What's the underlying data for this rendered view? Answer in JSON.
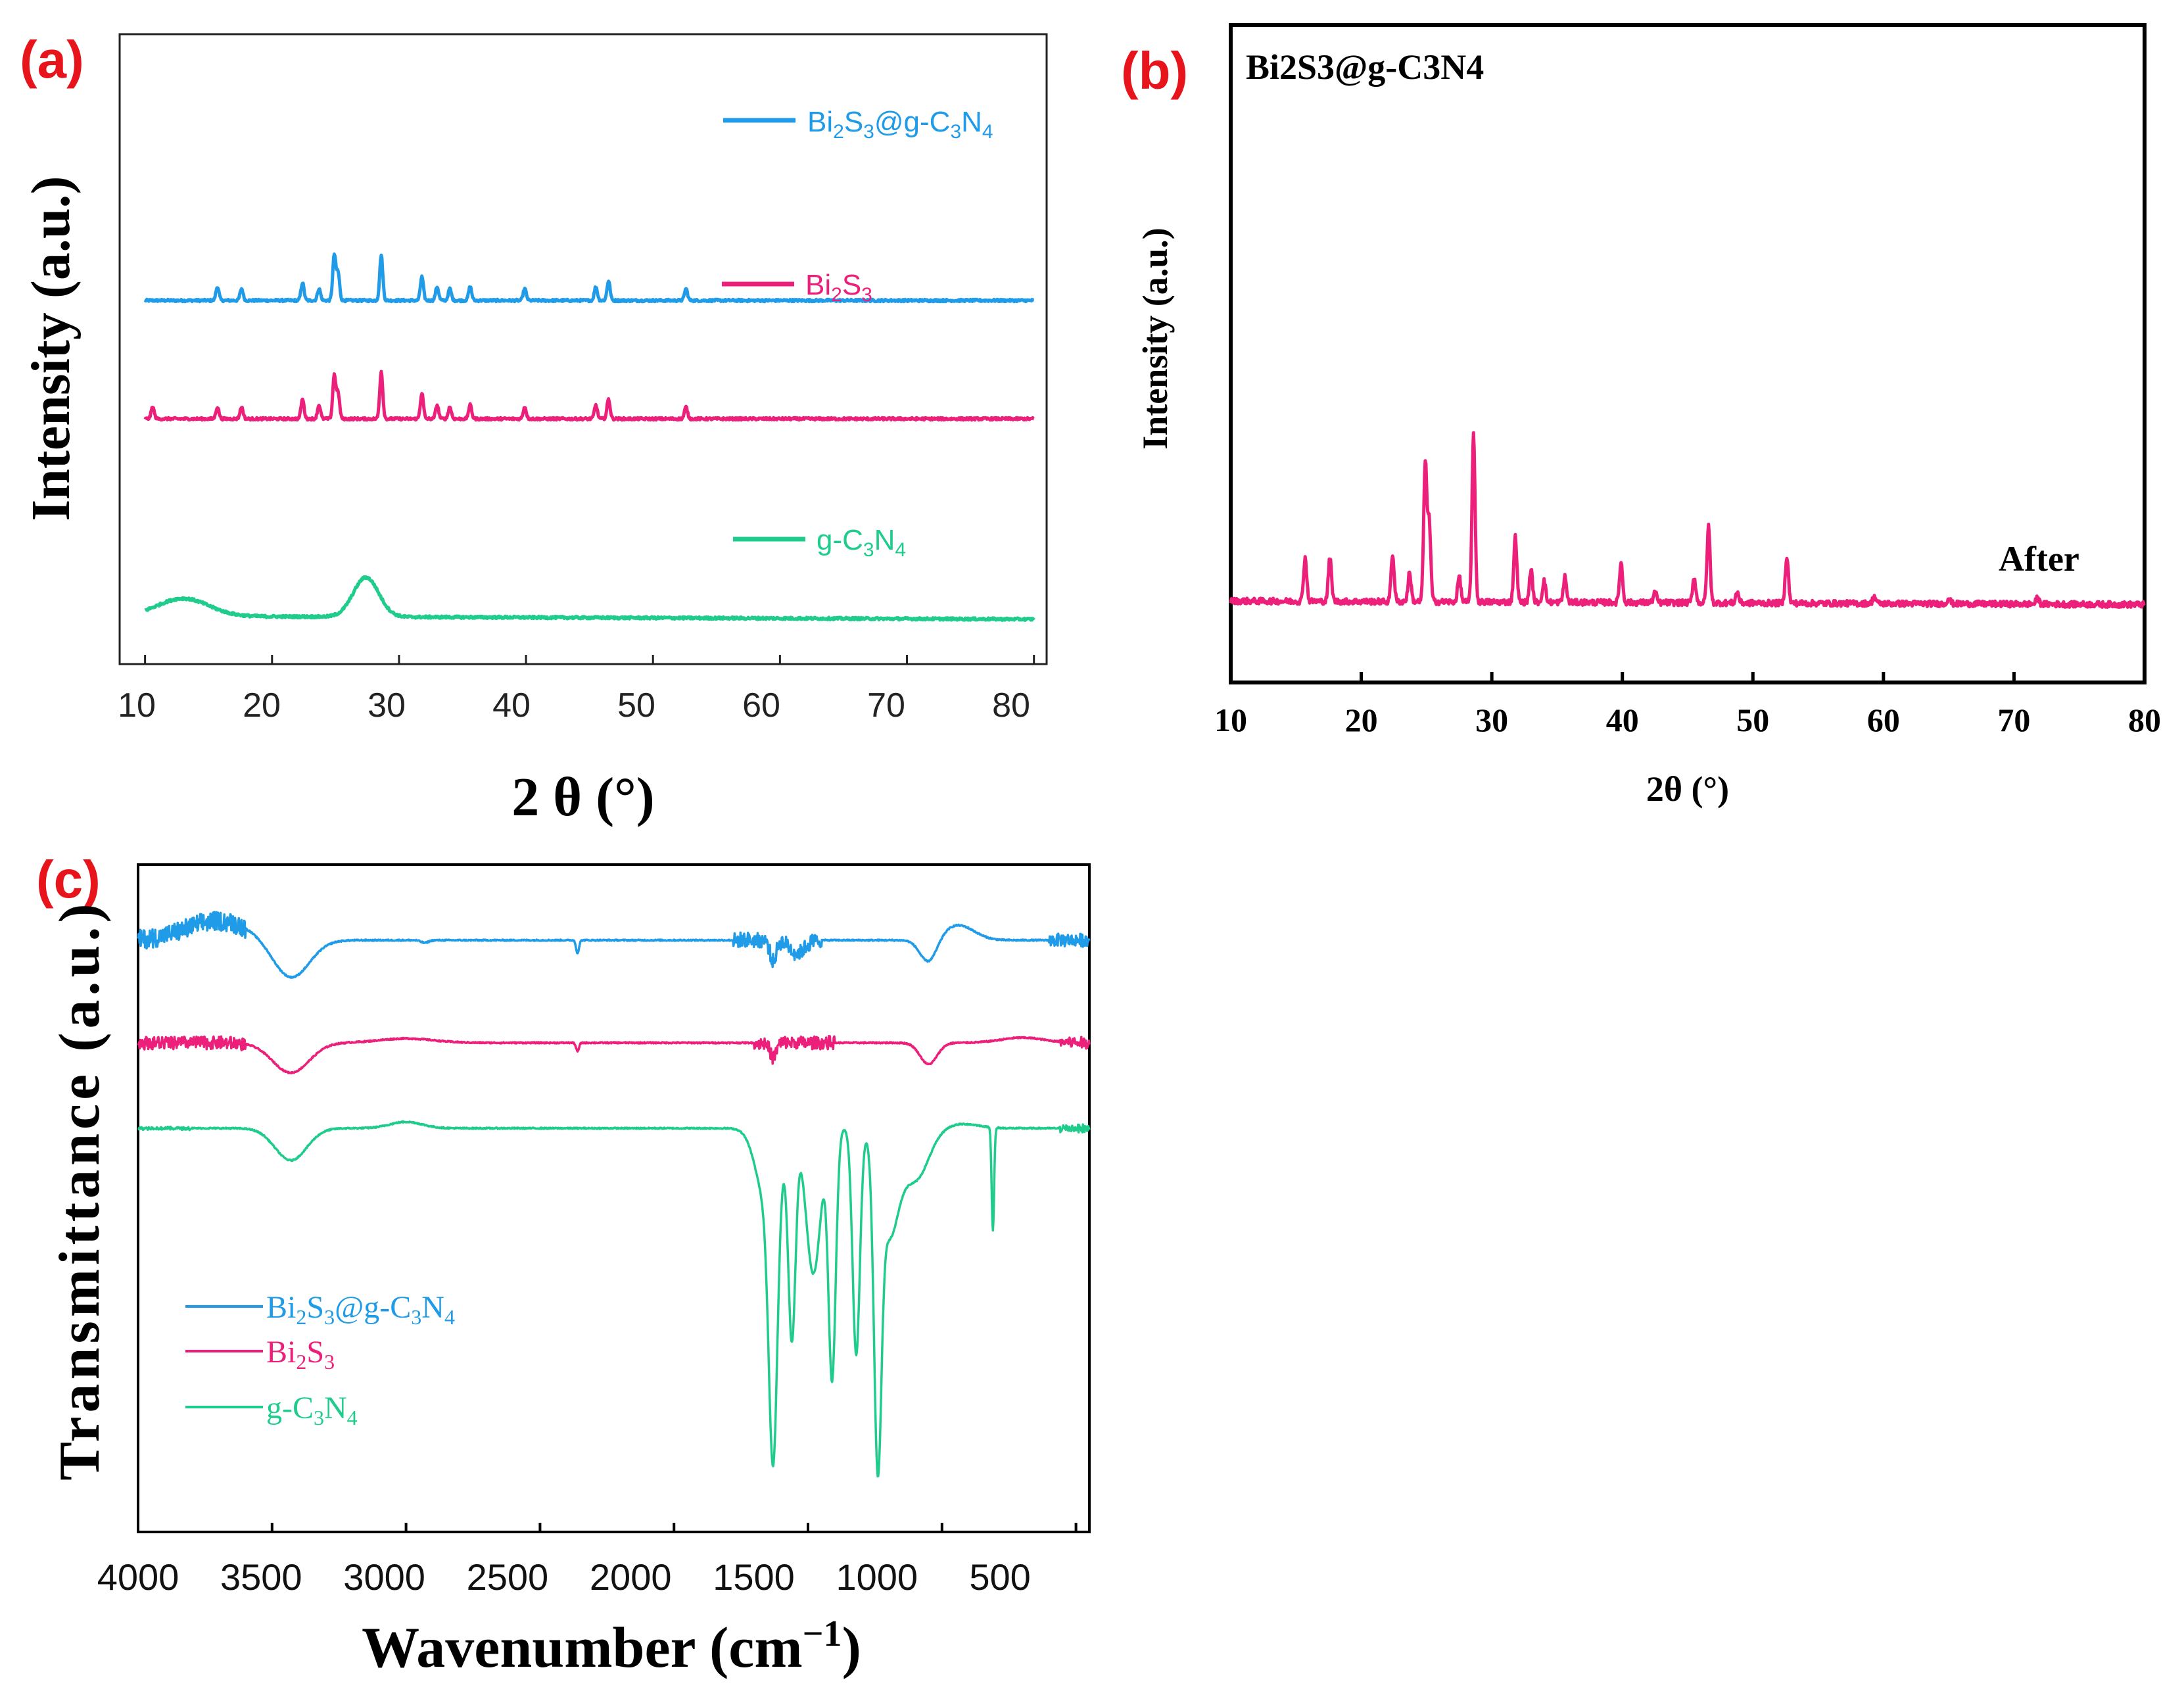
{
  "colors": {
    "bi2s3_gc3n4": "#1f9be8",
    "bi2s3": "#ec1f7a",
    "gc3n4": "#1fcc8c",
    "panel_label": "#e8141c"
  },
  "chart_data": [
    {
      "panel": "(a)",
      "type": "line",
      "title": "",
      "xlabel": "2 θ (°)",
      "ylabel": "Intensity (a.u.)",
      "xlim": [
        8,
        81
      ],
      "xticks": [
        10,
        20,
        30,
        40,
        50,
        60,
        70,
        80
      ],
      "yticks": [],
      "legend_placement": "labels beside each curve (right side)",
      "series": [
        {
          "name": "Bi2S3@g-C3N4",
          "display": {
            "base": "Bi",
            "s1": "2",
            "m1": "S",
            "s2": "3",
            "m2": "@g-C",
            "s3": "3",
            "m3": "N",
            "s4": "4"
          },
          "baseline": 8.3,
          "peaks": [
            [
              15.7,
              0.35
            ],
            [
              17.6,
              0.3
            ],
            [
              22.4,
              0.45
            ],
            [
              23.7,
              0.3
            ],
            [
              24.9,
              1.15
            ],
            [
              25.2,
              0.7
            ],
            [
              28.6,
              1.15
            ],
            [
              31.8,
              0.6
            ],
            [
              33.0,
              0.35
            ],
            [
              34.0,
              0.3
            ],
            [
              35.6,
              0.35
            ],
            [
              39.9,
              0.3
            ],
            [
              45.5,
              0.35
            ],
            [
              46.5,
              0.5
            ],
            [
              52.6,
              0.3
            ]
          ]
        },
        {
          "name": "Bi2S3",
          "display": {
            "base": "Bi",
            "s1": "2",
            "m1": "S",
            "s2": "3"
          },
          "baseline": 5.3,
          "peaks": [
            [
              10.6,
              0.3
            ],
            [
              15.7,
              0.3
            ],
            [
              17.6,
              0.3
            ],
            [
              22.4,
              0.5
            ],
            [
              23.7,
              0.35
            ],
            [
              24.9,
              1.1
            ],
            [
              25.2,
              0.65
            ],
            [
              28.6,
              1.2
            ],
            [
              31.8,
              0.65
            ],
            [
              33.0,
              0.35
            ],
            [
              34.0,
              0.3
            ],
            [
              35.6,
              0.35
            ],
            [
              39.9,
              0.3
            ],
            [
              45.5,
              0.35
            ],
            [
              46.5,
              0.5
            ],
            [
              52.6,
              0.3
            ]
          ]
        },
        {
          "name": "g-C3N4",
          "display": {
            "base": "g-C",
            "s1": "3",
            "m1": "N",
            "s2": "4"
          },
          "baseline": 0.3,
          "broad_peaks": [
            [
              13.0,
              0.45,
              2.0
            ],
            [
              27.4,
              1.0,
              1.0
            ]
          ]
        }
      ]
    },
    {
      "panel": "(b)",
      "type": "line",
      "title": "Bi2S3@g-C3N4",
      "annotation": "After",
      "xlabel": "2θ (°)",
      "ylabel": "Intensity (a.u.)",
      "xlim": [
        10,
        80
      ],
      "xticks": [
        10,
        20,
        30,
        40,
        50,
        60,
        70,
        80
      ],
      "yticks": [],
      "series": [
        {
          "name": "After",
          "baseline": 1.0,
          "peaks": [
            [
              15.7,
              0.6
            ],
            [
              17.6,
              0.6
            ],
            [
              22.4,
              0.65
            ],
            [
              23.7,
              0.4
            ],
            [
              24.9,
              1.9
            ],
            [
              25.2,
              1.1
            ],
            [
              27.5,
              0.35
            ],
            [
              28.6,
              2.3
            ],
            [
              31.8,
              0.9
            ],
            [
              33.0,
              0.45
            ],
            [
              34.0,
              0.3
            ],
            [
              35.6,
              0.35
            ],
            [
              39.9,
              0.55
            ],
            [
              42.5,
              0.15
            ],
            [
              45.5,
              0.35
            ],
            [
              46.6,
              1.05
            ],
            [
              48.8,
              0.15
            ],
            [
              52.6,
              0.65
            ],
            [
              59.3,
              0.1
            ],
            [
              65.0,
              0.08
            ],
            [
              71.8,
              0.08
            ]
          ]
        }
      ]
    },
    {
      "panel": "(c)",
      "type": "line",
      "title": "",
      "xlabel": "Wavenumber  (cm ⁻¹)",
      "ylabel": "Transmittance (a.u.)",
      "xlim": [
        4000,
        450
      ],
      "xticks": [
        4000,
        3500,
        3000,
        2500,
        2000,
        1500,
        1000,
        500
      ],
      "yticks": [],
      "legend_placement": "lower-left",
      "series": [
        {
          "name": "Bi2S3@g-C3N4",
          "display": {
            "base": "Bi",
            "s1": "2",
            "m1": "S",
            "s2": "3",
            "m2": "@g-C",
            "s3": "3",
            "m3": "N",
            "s4": "4"
          },
          "baseline": 10.0,
          "noise": [
            [
              4000,
              3600,
              0.45
            ],
            [
              1780,
              1450,
              0.35
            ],
            [
              600,
              450,
              0.3
            ]
          ],
          "bands": [
            [
              3430,
              0.9,
              150
            ],
            [
              2360,
              0.3,
              12
            ],
            [
              1630,
              0.5,
              25
            ],
            [
              1540,
              0.3,
              60
            ],
            [
              1050,
              0.55,
              70
            ],
            [
              2930,
              0.06,
              30
            ]
          ],
          "bumps": [
            [
              3700,
              0.45,
              120
            ],
            [
              940,
              0.35,
              60
            ]
          ]
        },
        {
          "name": "Bi2S3",
          "display": {
            "base": "Bi",
            "s1": "2",
            "m1": "S",
            "s2": "3"
          },
          "baseline": 7.6,
          "noise": [
            [
              4000,
              3600,
              0.3
            ],
            [
              1700,
              1400,
              0.3
            ],
            [
              560,
              450,
              0.25
            ]
          ],
          "bands": [
            [
              3430,
              0.7,
              150
            ],
            [
              2360,
              0.2,
              12
            ],
            [
              1630,
              0.35,
              25
            ],
            [
              1050,
              0.5,
              70
            ]
          ],
          "bumps": [
            [
              3000,
              0.1,
              100
            ],
            [
              700,
              0.12,
              80
            ]
          ]
        },
        {
          "name": "g-C3N4",
          "display": {
            "base": "g-C",
            "s1": "3",
            "m1": "N",
            "s2": "4"
          },
          "baseline": 5.6,
          "noise": [
            [
              4000,
              3800,
              0.06
            ],
            [
              560,
              450,
              0.2
            ]
          ],
          "bands": [
            [
              3430,
              0.75,
              130
            ],
            [
              1630,
              6.3,
              35
            ],
            [
              1560,
              4.8,
              30
            ],
            [
              1410,
              5.8,
              30
            ],
            [
              1320,
              5.3,
              30
            ],
            [
              1240,
              6.8,
              30
            ],
            [
              1480,
              3.4,
              60
            ],
            [
              1650,
              1.8,
              90
            ],
            [
              1200,
              2.4,
              80
            ],
            [
              1100,
              1.2,
              110
            ],
            [
              810,
              2.4,
              10
            ]
          ],
          "bumps": [
            [
              3000,
              0.15,
              60
            ],
            [
              920,
              0.1,
              60
            ]
          ]
        }
      ]
    }
  ],
  "panel_a": {
    "label": "(a)",
    "xlabel_main": "2 θ (",
    "xlabel_deg": "°",
    "xlabel_end": ")",
    "ylabel": "Intensity (a.u.)",
    "ticks": [
      "10",
      "20",
      "30",
      "40",
      "50",
      "60",
      "70",
      "80"
    ]
  },
  "panel_b": {
    "label": "(b)",
    "title": "Bi2S3@g-C3N4",
    "annotation": "After",
    "xlabel": "2θ (°)",
    "ylabel": "Intensity (a.u.)",
    "ticks": [
      "10",
      "20",
      "30",
      "40",
      "50",
      "60",
      "70",
      "80"
    ]
  },
  "panel_c": {
    "label": "(c)",
    "xlabel_main": "Wavenumber  (cm",
    "xlabel_sup": "−1",
    "xlabel_end": ")",
    "ylabel": "Transmittance (a.u.)",
    "ticks": [
      "4000",
      "3500",
      "3000",
      "2500",
      "2000",
      "1500",
      "1000",
      "500"
    ]
  }
}
